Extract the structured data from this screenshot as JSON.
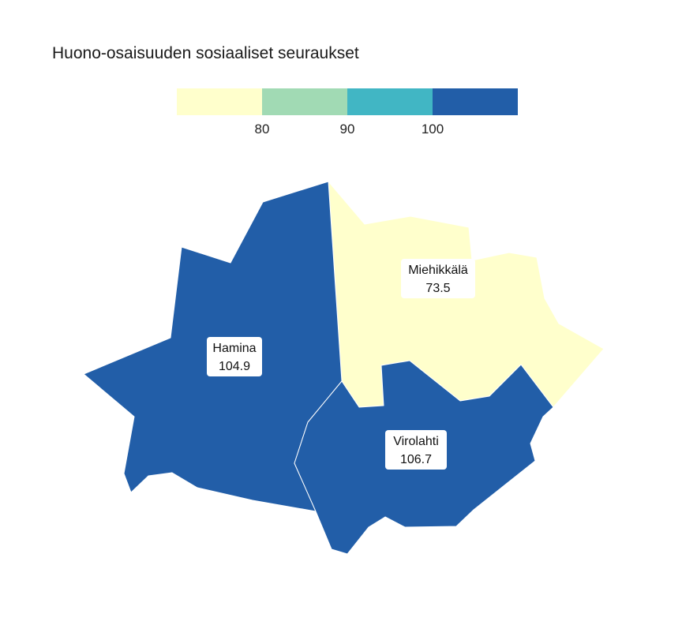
{
  "title": "Huono-osaisuuden sosiaaliset seuraukset",
  "legend": {
    "colors": [
      "#ffffcc",
      "#a1dab4",
      "#41b6c4",
      "#225ea8"
    ],
    "ticks": [
      "80",
      "90",
      "100"
    ]
  },
  "regions": [
    {
      "id": "hamina",
      "name": "Hamina",
      "value": "104.9",
      "color": "#225ea8"
    },
    {
      "id": "miehikkala",
      "name": "Miehikkälä",
      "value": "73.5",
      "color": "#ffffcc"
    },
    {
      "id": "virolahti",
      "name": "Virolahti",
      "value": "106.7",
      "color": "#225ea8"
    }
  ]
}
